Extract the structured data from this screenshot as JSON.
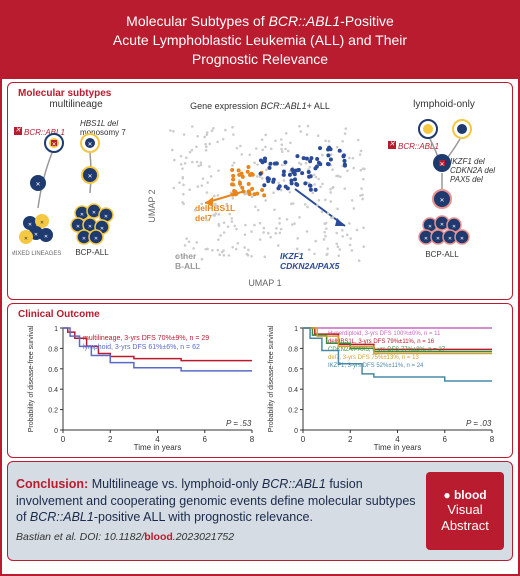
{
  "header": {
    "line1_pre": "Molecular Subtypes of ",
    "line1_it": "BCR::ABL1",
    "line1_post": "-Positive",
    "line2": "Acute Lymphoblastic Leukemia (ALL) and Their",
    "line3": "Prognostic Relevance"
  },
  "sections": {
    "molecular": "Molecular subtypes",
    "clinical": "Clinical Outcome"
  },
  "mol": {
    "left_title": "multilineage",
    "right_title": "lymphoid-only",
    "fusion": "BCR::ABL1",
    "hbs1l": "HBS1L del",
    "mono7": "monosomy 7",
    "ikzf1": "IKZF1 del",
    "cdkn2a": "CDKN2A del",
    "pax5": "PAX5 del",
    "mixed": "MIXED LINEAGES",
    "bcpall": "BCP-ALL",
    "colors": {
      "yellow": "#f5c842",
      "blue_dark": "#1e3a6e",
      "blue_mid": "#3a5a9a",
      "red_rim": "#e8928f",
      "grey": "#c0c0c0"
    }
  },
  "scatter": {
    "title_pre": "Gene expression ",
    "title_it": "BCR::ABL1",
    "title_post": "+ ALL",
    "xlabel": "UMAP 1",
    "ylabel": "UMAP 2",
    "delhbs1l": "delHBS1L",
    "del7": "del7",
    "other": "other",
    "ball": "B-ALL",
    "ikzf1": "IKZF1",
    "cdkn2apax5": "CDKN2A/PAX5",
    "colors": {
      "grey": "#cccccc",
      "orange": "#e8851c",
      "blue": "#2a4a9a"
    }
  },
  "km": {
    "xlabel": "Time in years",
    "ylabel": "Probability of disease-free survival",
    "xticks": [
      0,
      2,
      4,
      6,
      8
    ],
    "yticks": [
      0,
      0.2,
      0.4,
      0.6,
      0.8,
      1.0
    ],
    "left": {
      "p": "P = .53",
      "series": [
        {
          "label": "multilineage, 3-yrs DFS 70%±9%, n = 29",
          "color": "#b91c2e",
          "pts": [
            [
              0,
              1
            ],
            [
              0.2,
              0.96
            ],
            [
              0.5,
              0.9
            ],
            [
              1,
              0.82
            ],
            [
              1.5,
              0.75
            ],
            [
              2,
              0.72
            ],
            [
              3,
              0.7
            ],
            [
              5,
              0.68
            ],
            [
              8,
              0.68
            ]
          ]
        },
        {
          "label": "lymphoid, 3-yrs DFS 61%±6%, n = 62",
          "color": "#5a6aca",
          "pts": [
            [
              0,
              1
            ],
            [
              0.3,
              0.92
            ],
            [
              0.7,
              0.82
            ],
            [
              1.2,
              0.73
            ],
            [
              2,
              0.66
            ],
            [
              3,
              0.61
            ],
            [
              5,
              0.58
            ],
            [
              8,
              0.58
            ]
          ]
        }
      ]
    },
    "right": {
      "p": "P = .03",
      "series": [
        {
          "label": "Hyperdiploid, 3-yrs DFS 100%±0%, n = 11",
          "color": "#c968c4",
          "pts": [
            [
              0,
              1
            ],
            [
              8,
              1
            ]
          ]
        },
        {
          "label": "delHBS1L, 3-yrs DFS 79%±11%, n = 16",
          "color": "#b91c2e",
          "pts": [
            [
              0,
              1
            ],
            [
              0.5,
              0.94
            ],
            [
              1.5,
              0.84
            ],
            [
              3,
              0.79
            ],
            [
              8,
              0.79
            ]
          ]
        },
        {
          "label": "CDKN2A/PAX5, 3-yrs DFS 77%±8%, n = 27",
          "color": "#3a8a3a",
          "pts": [
            [
              0,
              1
            ],
            [
              0.4,
              0.93
            ],
            [
              1,
              0.85
            ],
            [
              2,
              0.8
            ],
            [
              3,
              0.77
            ],
            [
              8,
              0.77
            ]
          ]
        },
        {
          "label": "del7, 3-yrs DFS 75%±13%, n = 13",
          "color": "#d4a030",
          "pts": [
            [
              0,
              1
            ],
            [
              0.6,
              0.92
            ],
            [
              1.5,
              0.82
            ],
            [
              3,
              0.75
            ],
            [
              8,
              0.75
            ]
          ]
        },
        {
          "label": "IKZF1, 3-yrs DFS 52%±11%, n = 24",
          "color": "#4a8aa8",
          "pts": [
            [
              0,
              1
            ],
            [
              0.3,
              0.9
            ],
            [
              0.8,
              0.78
            ],
            [
              1.5,
              0.65
            ],
            [
              2.5,
              0.55
            ],
            [
              3,
              0.52
            ],
            [
              6,
              0.48
            ],
            [
              8,
              0.48
            ]
          ]
        }
      ]
    }
  },
  "conclusion": {
    "lead": "Conclusion:",
    "pre": " Multilineage vs. lymphoid-only ",
    "it1": "BCR::ABL1",
    "mid1": " fusion involvement and cooperating genomic events define molecular subtypes of ",
    "it2": "BCR::ABL1",
    "mid2": "-positive ALL with prognostic relevance."
  },
  "badge": {
    "blood": "● blood",
    "l1": "Visual",
    "l2": "Abstract"
  },
  "citation": {
    "text": "Bastian et al. DOI: 10.1182/",
    "doi": "blood",
    "post": ".2023021752"
  }
}
